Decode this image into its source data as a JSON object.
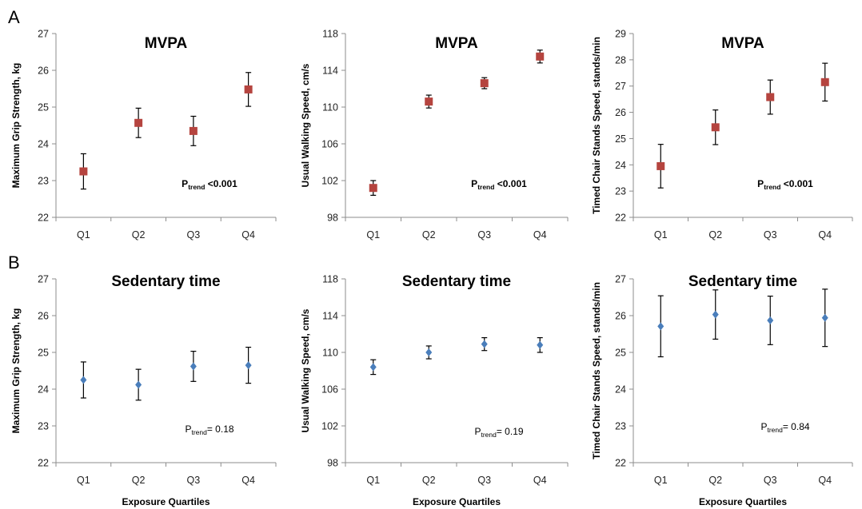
{
  "panel_labels": [
    "A",
    "B"
  ],
  "chart_data": [
    {
      "type": "scatter",
      "row": 0,
      "col": 0,
      "title": "MVPA",
      "ylabel": "Maximum Grip Strength, kg",
      "xlabel": "",
      "categories": [
        "Q1",
        "Q2",
        "Q3",
        "Q4"
      ],
      "ylim": [
        22,
        27
      ],
      "yticks": [
        22,
        23,
        24,
        25,
        26,
        27
      ],
      "marker": "square",
      "color": "#b5443f",
      "values": [
        23.25,
        24.57,
        24.35,
        25.48
      ],
      "err_low": [
        22.77,
        24.17,
        23.95,
        25.02
      ],
      "err_high": [
        23.73,
        24.97,
        24.75,
        25.94
      ],
      "ptrend": {
        "prefix": "P",
        "sub": "trend",
        "value": " <0.001",
        "bold": true
      }
    },
    {
      "type": "scatter",
      "row": 0,
      "col": 1,
      "title": "MVPA",
      "ylabel": "Usual Walking Speed, cm/s",
      "xlabel": "",
      "categories": [
        "Q1",
        "Q2",
        "Q3",
        "Q4"
      ],
      "ylim": [
        98,
        118
      ],
      "yticks": [
        98,
        102,
        106,
        110,
        114,
        118
      ],
      "marker": "square",
      "color": "#b5443f",
      "values": [
        101.2,
        110.6,
        112.6,
        115.5
      ],
      "err_low": [
        100.4,
        109.9,
        112.0,
        114.8
      ],
      "err_high": [
        102.0,
        111.3,
        113.2,
        116.2
      ],
      "ptrend": {
        "prefix": "P",
        "sub": "trend",
        "value": " <0.001",
        "bold": true
      }
    },
    {
      "type": "scatter",
      "row": 0,
      "col": 2,
      "title": "MVPA",
      "ylabel": "Timed Chair Stands Speed, stands/min",
      "xlabel": "",
      "categories": [
        "Q1",
        "Q2",
        "Q3",
        "Q4"
      ],
      "ylim": [
        22,
        29
      ],
      "yticks": [
        22,
        23,
        24,
        25,
        26,
        27,
        28,
        29
      ],
      "marker": "square",
      "color": "#b5443f",
      "values": [
        23.95,
        25.43,
        26.58,
        27.15
      ],
      "err_low": [
        23.12,
        24.77,
        25.93,
        26.43
      ],
      "err_high": [
        24.78,
        26.09,
        27.23,
        27.87
      ],
      "ptrend": {
        "prefix": "P",
        "sub": "trend",
        "value": " <0.001",
        "bold": true
      }
    },
    {
      "type": "scatter",
      "row": 1,
      "col": 0,
      "title": "Sedentary time",
      "ylabel": "Maximum Grip Strength, kg",
      "xlabel": "Exposure Quartiles",
      "categories": [
        "Q1",
        "Q2",
        "Q3",
        "Q4"
      ],
      "ylim": [
        22,
        27
      ],
      "yticks": [
        22,
        23,
        24,
        25,
        26,
        27
      ],
      "marker": "diamond",
      "color": "#4a7ebb",
      "values": [
        24.25,
        24.12,
        24.62,
        24.65
      ],
      "err_low": [
        23.76,
        23.7,
        24.21,
        24.16
      ],
      "err_high": [
        24.74,
        24.54,
        25.03,
        25.14
      ],
      "ptrend": {
        "prefix": "P",
        "sub": "trend",
        "value": "= 0.18",
        "bold": false
      }
    },
    {
      "type": "scatter",
      "row": 1,
      "col": 1,
      "title": "Sedentary time",
      "ylabel": "Usual Walking Speed, cm/s",
      "xlabel": "Exposure Quartiles",
      "categories": [
        "Q1",
        "Q2",
        "Q3",
        "Q4"
      ],
      "ylim": [
        98,
        118
      ],
      "yticks": [
        98,
        102,
        106,
        110,
        114,
        118
      ],
      "marker": "diamond",
      "color": "#4a7ebb",
      "values": [
        108.4,
        110.0,
        110.9,
        110.8
      ],
      "err_low": [
        107.6,
        109.3,
        110.2,
        110.0
      ],
      "err_high": [
        109.2,
        110.7,
        111.6,
        111.6
      ],
      "ptrend": {
        "prefix": "P",
        "sub": "trend",
        "value": "=  0.19",
        "bold": false
      }
    },
    {
      "type": "scatter",
      "row": 1,
      "col": 2,
      "title": "Sedentary time",
      "ylabel": "Timed Chair Stands Speed, stands/min",
      "xlabel": "Exposure Quartiles",
      "categories": [
        "Q1",
        "Q2",
        "Q3",
        "Q4"
      ],
      "ylim": [
        22,
        27
      ],
      "yticks": [
        22,
        23,
        24,
        25,
        26,
        27
      ],
      "marker": "diamond",
      "color": "#4a7ebb",
      "values": [
        25.71,
        26.03,
        25.87,
        25.94
      ],
      "err_low": [
        24.88,
        25.36,
        25.21,
        25.16
      ],
      "err_high": [
        26.54,
        26.7,
        26.53,
        26.72
      ],
      "ptrend": {
        "prefix": "P",
        "sub": "trend",
        "value": "= 0.84",
        "bold": false
      }
    }
  ]
}
